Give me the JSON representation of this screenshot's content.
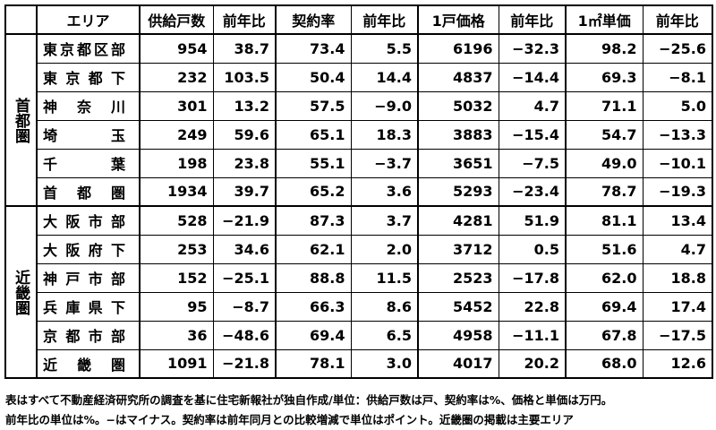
{
  "table": {
    "header": [
      "エリア",
      "供給戸数",
      "前年比",
      "契約率",
      "前年比",
      "1戸価格",
      "前年比",
      "1㎡単価",
      "前年比"
    ],
    "groups": [
      {
        "name": "首都圏",
        "rows": [
          [
            "東京都区部",
            "954",
            "38.7",
            "73.4",
            "5.5",
            "6196",
            "−32.3",
            "98.2",
            "−25.6"
          ],
          [
            "東京都下",
            "232",
            "103.5",
            "50.4",
            "14.4",
            "4837",
            "−14.4",
            "69.3",
            "−8.1"
          ],
          [
            "神奈川",
            "301",
            "13.2",
            "57.5",
            "−9.0",
            "5032",
            "4.7",
            "71.1",
            "5.0"
          ],
          [
            "埼玉",
            "249",
            "59.6",
            "65.1",
            "18.3",
            "3883",
            "−15.4",
            "54.7",
            "−13.3"
          ],
          [
            "千葉",
            "198",
            "23.8",
            "55.1",
            "−3.7",
            "3651",
            "−7.5",
            "49.0",
            "−10.1"
          ],
          [
            "首都圏",
            "1934",
            "39.7",
            "65.2",
            "3.6",
            "5293",
            "−23.4",
            "78.7",
            "−19.3"
          ]
        ]
      },
      {
        "name": "近畿圏",
        "rows": [
          [
            "大阪市部",
            "528",
            "−21.9",
            "87.3",
            "3.7",
            "4281",
            "51.9",
            "81.1",
            "13.4"
          ],
          [
            "大阪府下",
            "253",
            "34.6",
            "62.1",
            "2.0",
            "3712",
            "0.5",
            "51.6",
            "4.7"
          ],
          [
            "神戸市部",
            "152",
            "−25.1",
            "88.8",
            "11.5",
            "2523",
            "−17.8",
            "62.0",
            "18.8"
          ],
          [
            "兵庫県下",
            "95",
            "−8.7",
            "66.3",
            "8.6",
            "5452",
            "22.8",
            "69.4",
            "17.4"
          ],
          [
            "京都市部",
            "36",
            "−48.6",
            "69.4",
            "6.5",
            "4958",
            "−11.1",
            "67.8",
            "−17.5"
          ],
          [
            "近畿圏",
            "1091",
            "−21.8",
            "78.1",
            "3.0",
            "4017",
            "20.2",
            "68.0",
            "12.6"
          ]
        ]
      }
    ]
  },
  "notes": [
    "表はすべて不動産経済研究所の調査を基に住宅新報社が独自作成/単位：供給戸数は戸、契約率は%、価格と単価は万円。",
    "前年比の単位は%。−はマイナス。契約率は前年同月との比較増減で単位はポイント。近畿圏の掲載は主要エリア"
  ]
}
